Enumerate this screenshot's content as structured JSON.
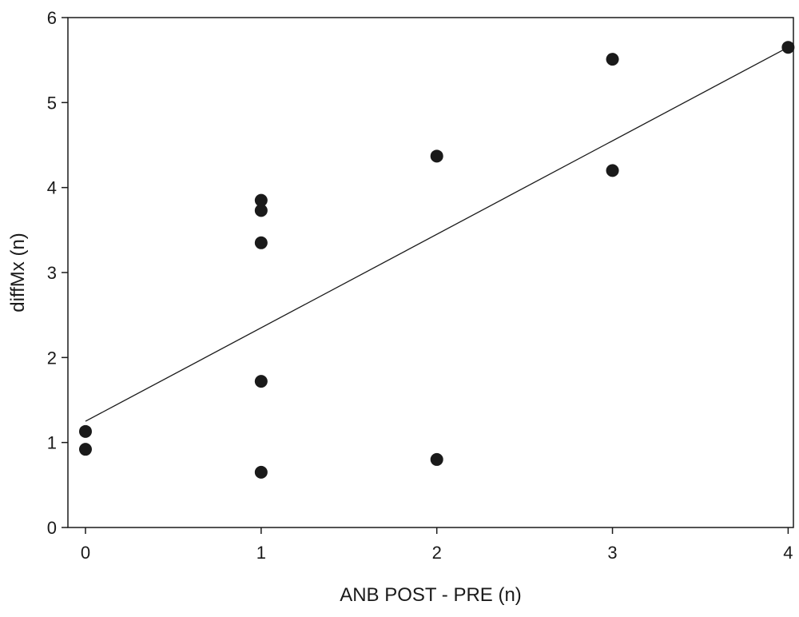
{
  "chart_data": {
    "type": "scatter",
    "title": "",
    "xlabel": "ANB POST - PRE (n)",
    "ylabel": "diffMx (n)",
    "xlim": [
      -0.1,
      4.03
    ],
    "ylim": [
      0,
      6
    ],
    "xticks": [
      0,
      1,
      2,
      3,
      4
    ],
    "yticks": [
      0,
      1,
      2,
      3,
      4,
      5,
      6
    ],
    "xtick_labels": [
      "0",
      "1",
      "2",
      "3",
      "4"
    ],
    "ytick_labels": [
      "0",
      "1",
      "2",
      "3",
      "4",
      "5",
      "6"
    ],
    "grid": false,
    "legend": "none",
    "points": [
      {
        "x": 0,
        "y": 1.13
      },
      {
        "x": 0,
        "y": 0.92
      },
      {
        "x": 1,
        "y": 3.85
      },
      {
        "x": 1,
        "y": 3.73
      },
      {
        "x": 1,
        "y": 3.35
      },
      {
        "x": 1,
        "y": 1.72
      },
      {
        "x": 1,
        "y": 0.65
      },
      {
        "x": 2,
        "y": 4.37
      },
      {
        "x": 2,
        "y": 0.8
      },
      {
        "x": 3,
        "y": 5.51
      },
      {
        "x": 3,
        "y": 4.2
      },
      {
        "x": 4,
        "y": 5.65
      }
    ],
    "trendline": {
      "x": [
        0,
        4
      ],
      "y": [
        1.25,
        5.65
      ]
    },
    "marker_color": "#1a1a1a"
  }
}
